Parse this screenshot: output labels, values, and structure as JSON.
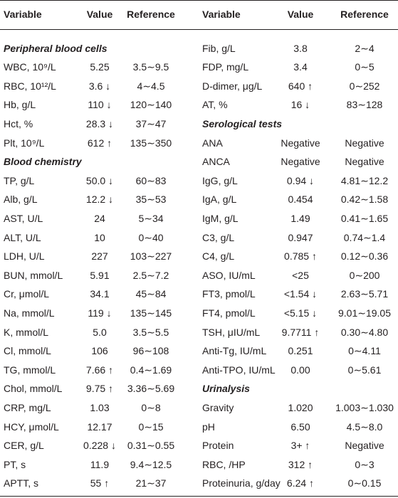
{
  "table": {
    "header": [
      "Variable",
      "Value",
      "Reference",
      "Variable",
      "Value",
      "Reference"
    ],
    "rows": [
      {
        "left": [
          "Peripheral blood cells"
        ],
        "right": [
          "Fib, g/L",
          "3.8",
          "2∼4"
        ]
      },
      {
        "left": [
          "WBC, 10⁹/L",
          "5.25",
          "3.5∼9.5"
        ],
        "right": [
          "FDP, mg/L",
          "3.4",
          "0∼5"
        ]
      },
      {
        "left": [
          "RBC, 10¹²/L",
          "3.6 ↓",
          "4∼4.5"
        ],
        "right": [
          "D-dimer, μg/L",
          "640 ↑",
          "0∼252"
        ]
      },
      {
        "left": [
          "Hb, g/L",
          "110 ↓",
          "120∼140"
        ],
        "right": [
          "AT, %",
          "16 ↓",
          "83∼128"
        ]
      },
      {
        "left": [
          "Hct, %",
          "28.3 ↓",
          "37∼47"
        ],
        "right": [
          "Serological tests"
        ]
      },
      {
        "left": [
          "Plt, 10⁹/L",
          "612 ↑",
          "135∼350"
        ],
        "right": [
          "ANA",
          "Negative",
          "Negative"
        ]
      },
      {
        "left": [
          "Blood chemistry"
        ],
        "right": [
          "ANCA",
          "Negative",
          "Negative"
        ]
      },
      {
        "left": [
          "TP, g/L",
          "50.0 ↓",
          "60∼83"
        ],
        "right": [
          "IgG, g/L",
          "0.94 ↓",
          "4.81∼12.2"
        ]
      },
      {
        "left": [
          "Alb, g/L",
          "12.2 ↓",
          "35∼53"
        ],
        "right": [
          "IgA, g/L",
          "0.454",
          "0.42∼1.58"
        ]
      },
      {
        "left": [
          "AST, U/L",
          "24",
          "5∼34"
        ],
        "right": [
          "IgM, g/L",
          "1.49",
          "0.41∼1.65"
        ]
      },
      {
        "left": [
          "ALT, U/L",
          "10",
          "0∼40"
        ],
        "right": [
          "C3, g/L",
          "0.947",
          "0.74∼1.4"
        ]
      },
      {
        "left": [
          "LDH, U/L",
          "227",
          "103∼227"
        ],
        "right": [
          "C4, g/L",
          "0.785 ↑",
          "0.12∼0.36"
        ]
      },
      {
        "left": [
          "BUN, mmol/L",
          "5.91",
          "2.5∼7.2"
        ],
        "right": [
          "ASO, IU/mL",
          "<25",
          "0∼200"
        ]
      },
      {
        "left": [
          "Cr, μmol/L",
          "34.1",
          "45∼84"
        ],
        "right": [
          "FT3, pmol/L",
          "<1.54 ↓",
          "2.63∼5.71"
        ]
      },
      {
        "left": [
          "Na, mmol/L",
          "119 ↓",
          "135∼145"
        ],
        "right": [
          "FT4, pmol/L",
          "<5.15 ↓",
          "9.01∼19.05"
        ]
      },
      {
        "left": [
          "K, mmol/L",
          "5.0",
          "3.5∼5.5"
        ],
        "right": [
          "TSH, μIU/mL",
          "9.7711 ↑",
          "0.30∼4.80"
        ]
      },
      {
        "left": [
          "Cl, mmol/L",
          "106",
          "96∼108"
        ],
        "right": [
          "Anti-Tg, IU/mL",
          "0.251",
          "0∼4.11"
        ]
      },
      {
        "left": [
          "TG, mmol/L",
          "7.66 ↑",
          "0.4∼1.69"
        ],
        "right": [
          "Anti-TPO, IU/mL",
          "0.00",
          "0∼5.61"
        ]
      },
      {
        "left": [
          "Chol, mmol/L",
          "9.75 ↑",
          "3.36∼5.69"
        ],
        "right": [
          "Urinalysis"
        ]
      },
      {
        "left": [
          "CRP, mg/L",
          "1.03",
          "0∼8"
        ],
        "right": [
          "Gravity",
          "1.020",
          "1.003∼1.030"
        ]
      },
      {
        "left": [
          "HCY, μmol/L",
          "12.17",
          "0∼15"
        ],
        "right": [
          "pH",
          "6.50",
          "4.5∼8.0"
        ]
      },
      {
        "left": [
          "CER, g/L",
          "0.228 ↓",
          "0.31∼0.55"
        ],
        "right": [
          "Protein",
          "3+ ↑",
          "Negative"
        ]
      },
      {
        "left": [
          "PT, s",
          "11.9",
          "9.4∼12.5"
        ],
        "right": [
          "RBC, /HP",
          "312 ↑",
          "0∼3"
        ]
      },
      {
        "left": [
          "APTT, s",
          "55 ↑",
          "21∼37"
        ],
        "right": [
          "Proteinuria, g/day",
          "6.24 ↑",
          "0∼0.15"
        ]
      }
    ]
  }
}
